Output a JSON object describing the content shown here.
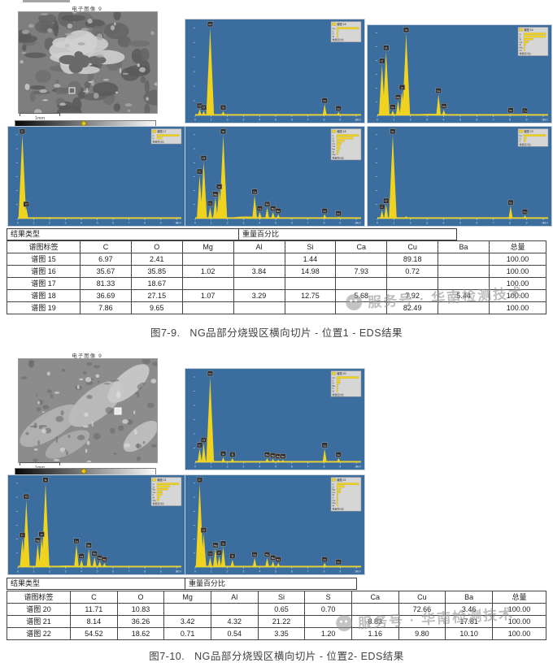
{
  "labels": {
    "result_type": "结果类型",
    "weight_pct": "重量百分比",
    "axis_unit": "keV"
  },
  "watermark": {
    "text": "服务号 · 华南检测技术"
  },
  "section1": {
    "sem": {
      "title": "电子图像 9",
      "scale_label": "1mm"
    },
    "caption": "图7-9.   NG品部分烧毁区横向切片 - 位置1 - EDS结果",
    "table": {
      "columns": [
        "谱图标签",
        "C",
        "O",
        "Mg",
        "Al",
        "Si",
        "Ca",
        "Cu",
        "Ba",
        "总量"
      ],
      "rows": [
        [
          "谱图 15",
          "6.97",
          "2.41",
          "",
          "",
          "1.44",
          "",
          "89.18",
          "",
          "100.00"
        ],
        [
          "谱图 16",
          "35.67",
          "35.85",
          "1.02",
          "3.84",
          "14.98",
          "7.93",
          "0.72",
          "",
          "100.00"
        ],
        [
          "谱图 17",
          "81.33",
          "18.67",
          "",
          "",
          "",
          "",
          "",
          "",
          "100.00"
        ],
        [
          "谱图 18",
          "36.69",
          "27.15",
          "1.07",
          "3.29",
          "12.75",
          "5.68",
          "7.92",
          "5.44",
          "100.00"
        ],
        [
          "谱图 19",
          "7.86",
          "9.65",
          "",
          "",
          "",
          "",
          "82.49",
          "",
          "100.00"
        ]
      ]
    }
  },
  "section2": {
    "sem": {
      "title": "电子图像 9",
      "scale_label": "1mm"
    },
    "caption": "图7-10.   NG品部分烧毁区横向切片 - 位置2- EDS结果",
    "table": {
      "columns": [
        "谱图标签",
        "C",
        "O",
        "Mg",
        "Al",
        "Si",
        "S",
        "Ca",
        "Cu",
        "Ba",
        "总量"
      ],
      "rows": [
        [
          "谱图 20",
          "11.71",
          "10.83",
          "",
          "",
          "0.65",
          "0.70",
          "",
          "72.66",
          "3.46",
          "100.00"
        ],
        [
          "谱图 21",
          "8.14",
          "36.26",
          "3.42",
          "4.32",
          "21.22",
          "",
          "8.83",
          "",
          "17.81",
          "100.00"
        ],
        [
          "谱图 22",
          "54.52",
          "18.62",
          "0.71",
          "0.54",
          "3.35",
          "1.20",
          "1.16",
          "9.80",
          "10.10",
          "100.00"
        ]
      ]
    }
  },
  "colors": {
    "chart_bg": "#3b6d9e",
    "peak_fill": "#f0d31e",
    "legend_bg": "#d6d6d6"
  },
  "chart_data": [
    {
      "id": "s15",
      "type": "area",
      "label": "谱图 15",
      "xlabel": "keV",
      "xrange": [
        0,
        10.3
      ],
      "xticks": [
        0,
        1,
        2,
        3,
        4,
        5,
        6,
        7,
        8,
        9,
        10
      ],
      "elements": [
        {
          "symbol": "Cu",
          "wt": 89.18
        },
        {
          "symbol": "C",
          "wt": 6.97
        },
        {
          "symbol": "O",
          "wt": 2.41
        },
        {
          "symbol": "Si",
          "wt": 1.44
        }
      ],
      "peaks": [
        {
          "kev": 0.28,
          "h": 0.07,
          "el": "C"
        },
        {
          "kev": 0.53,
          "h": 0.05,
          "el": "O"
        },
        {
          "kev": 0.93,
          "h": 1.0,
          "el": "Cu"
        },
        {
          "kev": 1.74,
          "h": 0.05,
          "el": "Si"
        },
        {
          "kev": 8.04,
          "h": 0.13,
          "el": "Cu"
        },
        {
          "kev": 8.9,
          "h": 0.04,
          "el": "Cu"
        }
      ]
    },
    {
      "id": "s16",
      "type": "area",
      "label": "谱图 16",
      "xlabel": "keV",
      "xrange": [
        0,
        10.3
      ],
      "xticks": [
        0,
        1,
        2,
        3,
        4,
        5,
        6,
        7,
        8,
        9,
        10
      ],
      "elements": [
        {
          "symbol": "O",
          "wt": 35.85
        },
        {
          "symbol": "C",
          "wt": 35.67
        },
        {
          "symbol": "Si",
          "wt": 14.98
        },
        {
          "symbol": "Ca",
          "wt": 7.93
        },
        {
          "symbol": "Al",
          "wt": 3.84
        },
        {
          "symbol": "Mg",
          "wt": 1.02
        },
        {
          "symbol": "Cu",
          "wt": 0.72
        }
      ],
      "hump": [
        2.0,
        4.4,
        0.04
      ],
      "peaks": [
        {
          "kev": 0.28,
          "h": 0.62,
          "el": "C"
        },
        {
          "kev": 0.53,
          "h": 0.78,
          "el": "O"
        },
        {
          "kev": 0.93,
          "h": 0.06,
          "el": "Cu"
        },
        {
          "kev": 1.25,
          "h": 0.18,
          "el": "Mg"
        },
        {
          "kev": 1.49,
          "h": 0.3,
          "el": "Al"
        },
        {
          "kev": 1.74,
          "h": 1.0,
          "el": "Si"
        },
        {
          "kev": 3.69,
          "h": 0.26,
          "el": "Ca"
        },
        {
          "kev": 4.01,
          "h": 0.07,
          "el": "Ca"
        },
        {
          "kev": 8.04,
          "h": 0.02,
          "el": "Cu"
        },
        {
          "kev": 8.9,
          "h": 0.015,
          "el": "Cu"
        }
      ]
    },
    {
      "id": "s17",
      "type": "area",
      "label": "谱图 17",
      "xlabel": "keV",
      "xrange": [
        0,
        10.3
      ],
      "xticks": [
        0,
        1,
        2,
        3,
        4,
        5,
        6,
        7,
        8,
        9,
        10
      ],
      "elements": [
        {
          "symbol": "C",
          "wt": 81.33
        },
        {
          "symbol": "O",
          "wt": 18.67
        }
      ],
      "peaks": [
        {
          "kev": 0.28,
          "h": 1.0,
          "el": "C"
        },
        {
          "kev": 0.53,
          "h": 0.13,
          "el": "O"
        },
        {
          "kev": 2.0,
          "h": 0.02,
          "el": ""
        }
      ]
    },
    {
      "id": "s18",
      "type": "area",
      "label": "谱图 18",
      "xlabel": "keV",
      "xrange": [
        0,
        10.3
      ],
      "xticks": [
        0,
        1,
        2,
        3,
        4,
        5,
        6,
        7,
        8,
        9,
        10
      ],
      "elements": [
        {
          "symbol": "C",
          "wt": 36.69
        },
        {
          "symbol": "O",
          "wt": 27.15
        },
        {
          "symbol": "Si",
          "wt": 12.75
        },
        {
          "symbol": "Cu",
          "wt": 7.92
        },
        {
          "symbol": "Ca",
          "wt": 5.68
        },
        {
          "symbol": "Ba",
          "wt": 5.44
        },
        {
          "symbol": "Al",
          "wt": 3.29
        },
        {
          "symbol": "Mg",
          "wt": 1.07
        }
      ],
      "hump": [
        2.0,
        4.3,
        0.05
      ],
      "peaks": [
        {
          "kev": 0.28,
          "h": 0.52,
          "el": "C"
        },
        {
          "kev": 0.53,
          "h": 0.68,
          "el": "O"
        },
        {
          "kev": 0.93,
          "h": 0.14,
          "el": "Cu"
        },
        {
          "kev": 1.25,
          "h": 0.25,
          "el": "Mg"
        },
        {
          "kev": 1.49,
          "h": 0.34,
          "el": "Al"
        },
        {
          "kev": 1.74,
          "h": 1.0,
          "el": "Si"
        },
        {
          "kev": 3.69,
          "h": 0.28,
          "el": "Ca"
        },
        {
          "kev": 4.01,
          "h": 0.08,
          "el": "Ca"
        },
        {
          "kev": 4.47,
          "h": 0.13,
          "el": "Ba"
        },
        {
          "kev": 4.83,
          "h": 0.08,
          "el": "Ba"
        },
        {
          "kev": 5.16,
          "h": 0.05,
          "el": "Ba"
        },
        {
          "kev": 8.04,
          "h": 0.05,
          "el": "Cu"
        },
        {
          "kev": 8.9,
          "h": 0.02,
          "el": "Cu"
        }
      ]
    },
    {
      "id": "s19",
      "type": "area",
      "label": "谱图 19",
      "xlabel": "keV",
      "xrange": [
        0,
        10.3
      ],
      "xticks": [
        0,
        1,
        2,
        3,
        4,
        5,
        6,
        7,
        8,
        9,
        10
      ],
      "elements": [
        {
          "symbol": "Cu",
          "wt": 82.49
        },
        {
          "symbol": "O",
          "wt": 9.65
        },
        {
          "symbol": "C",
          "wt": 7.86
        }
      ],
      "peaks": [
        {
          "kev": 0.28,
          "h": 0.1,
          "el": "C"
        },
        {
          "kev": 0.53,
          "h": 0.17,
          "el": "O"
        },
        {
          "kev": 0.93,
          "h": 1.0,
          "el": "Cu"
        },
        {
          "kev": 1.74,
          "h": 0.03,
          "el": ""
        },
        {
          "kev": 8.04,
          "h": 0.15,
          "el": "Cu"
        },
        {
          "kev": 8.9,
          "h": 0.04,
          "el": "Cu"
        }
      ]
    },
    {
      "id": "s20",
      "type": "area",
      "label": "谱图 20",
      "xlabel": "keV",
      "xrange": [
        0,
        10.3
      ],
      "xticks": [
        0,
        1,
        2,
        3,
        4,
        5,
        6,
        7,
        8,
        9,
        10
      ],
      "elements": [
        {
          "symbol": "Cu",
          "wt": 72.66
        },
        {
          "symbol": "C",
          "wt": 11.71
        },
        {
          "symbol": "O",
          "wt": 10.83
        },
        {
          "symbol": "Ba",
          "wt": 3.46
        },
        {
          "symbol": "S",
          "wt": 0.7
        },
        {
          "symbol": "Si",
          "wt": 0.65
        }
      ],
      "peaks": [
        {
          "kev": 0.28,
          "h": 0.16,
          "el": "C"
        },
        {
          "kev": 0.53,
          "h": 0.22,
          "el": "O"
        },
        {
          "kev": 0.93,
          "h": 1.0,
          "el": "Cu"
        },
        {
          "kev": 1.74,
          "h": 0.06,
          "el": "Si"
        },
        {
          "kev": 2.31,
          "h": 0.05,
          "el": "S"
        },
        {
          "kev": 4.47,
          "h": 0.05,
          "el": "Ba"
        },
        {
          "kev": 4.83,
          "h": 0.04,
          "el": "Ba"
        },
        {
          "kev": 5.16,
          "h": 0.03,
          "el": "Ba"
        },
        {
          "kev": 5.45,
          "h": 0.03,
          "el": "Ba"
        },
        {
          "kev": 8.04,
          "h": 0.16,
          "el": "Cu"
        },
        {
          "kev": 8.9,
          "h": 0.05,
          "el": "Cu"
        }
      ]
    },
    {
      "id": "s21",
      "type": "area",
      "label": "谱图 21",
      "xlabel": "keV",
      "xrange": [
        0,
        10.3
      ],
      "xticks": [
        0,
        1,
        2,
        3,
        4,
        5,
        6,
        7,
        8,
        9,
        10
      ],
      "elements": [
        {
          "symbol": "O",
          "wt": 36.26
        },
        {
          "symbol": "Si",
          "wt": 21.22
        },
        {
          "symbol": "Ba",
          "wt": 17.81
        },
        {
          "symbol": "Ca",
          "wt": 8.83
        },
        {
          "symbol": "C",
          "wt": 8.14
        },
        {
          "symbol": "Al",
          "wt": 4.32
        },
        {
          "symbol": "Mg",
          "wt": 3.42
        }
      ],
      "hump": [
        2.0,
        4.2,
        0.04
      ],
      "peaks": [
        {
          "kev": 0.28,
          "h": 0.34,
          "el": "C"
        },
        {
          "kev": 0.53,
          "h": 0.8,
          "el": "O"
        },
        {
          "kev": 1.25,
          "h": 0.28,
          "el": "Mg"
        },
        {
          "kev": 1.49,
          "h": 0.35,
          "el": "Al"
        },
        {
          "kev": 1.74,
          "h": 1.0,
          "el": "Si"
        },
        {
          "kev": 3.69,
          "h": 0.27,
          "el": "Ca"
        },
        {
          "kev": 4.01,
          "h": 0.09,
          "el": "Ca"
        },
        {
          "kev": 4.47,
          "h": 0.22,
          "el": "Ba"
        },
        {
          "kev": 4.83,
          "h": 0.12,
          "el": "Ba"
        },
        {
          "kev": 5.16,
          "h": 0.07,
          "el": "Ba"
        },
        {
          "kev": 5.45,
          "h": 0.05,
          "el": "Ba"
        }
      ]
    },
    {
      "id": "s22",
      "type": "area",
      "label": "谱图 22",
      "xlabel": "keV",
      "xrange": [
        0,
        10.3
      ],
      "xticks": [
        0,
        1,
        2,
        3,
        4,
        5,
        6,
        7,
        8,
        9,
        10
      ],
      "elements": [
        {
          "symbol": "C",
          "wt": 54.52
        },
        {
          "symbol": "O",
          "wt": 18.62
        },
        {
          "symbol": "Ba",
          "wt": 10.1
        },
        {
          "symbol": "Cu",
          "wt": 9.8
        },
        {
          "symbol": "Si",
          "wt": 3.35
        },
        {
          "symbol": "S",
          "wt": 1.2
        },
        {
          "symbol": "Ca",
          "wt": 1.16
        },
        {
          "symbol": "Mg",
          "wt": 0.71
        },
        {
          "symbol": "Al",
          "wt": 0.54
        }
      ],
      "peaks": [
        {
          "kev": 0.28,
          "h": 1.0,
          "el": "C"
        },
        {
          "kev": 0.53,
          "h": 0.4,
          "el": "O"
        },
        {
          "kev": 0.93,
          "h": 0.12,
          "el": "Cu"
        },
        {
          "kev": 1.25,
          "h": 0.22,
          "el": "Mg"
        },
        {
          "kev": 1.49,
          "h": 0.13,
          "el": "Al"
        },
        {
          "kev": 1.74,
          "h": 0.24,
          "el": "Si"
        },
        {
          "kev": 2.31,
          "h": 0.09,
          "el": "S"
        },
        {
          "kev": 3.69,
          "h": 0.11,
          "el": "Ca"
        },
        {
          "kev": 4.47,
          "h": 0.11,
          "el": "Ba"
        },
        {
          "kev": 4.83,
          "h": 0.07,
          "el": "Ba"
        },
        {
          "kev": 5.16,
          "h": 0.05,
          "el": "Ba"
        },
        {
          "kev": 8.04,
          "h": 0.05,
          "el": "Cu"
        },
        {
          "kev": 8.9,
          "h": 0.02,
          "el": "Cu"
        }
      ]
    }
  ]
}
